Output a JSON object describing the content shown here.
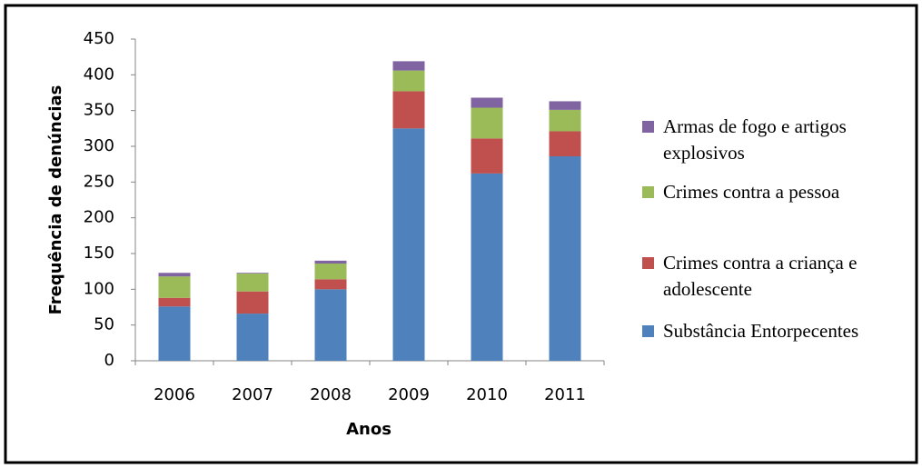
{
  "chart_data": {
    "type": "stacked_bar",
    "x_label": "Anos",
    "y_label": "Frequência de denúncias",
    "categories": [
      "2006",
      "2007",
      "2008",
      "2009",
      "2010",
      "2011"
    ],
    "series": [
      {
        "name": "Substância Entorpecentes",
        "color": "#4f81bd",
        "values": [
          76,
          66,
          100,
          325,
          262,
          286
        ]
      },
      {
        "name": "Crimes contra a criança e adolescente",
        "color": "#c0504d",
        "values": [
          12,
          31,
          14,
          52,
          49,
          35
        ]
      },
      {
        "name": "Crimes contra a pessoa",
        "color": "#9bbb59",
        "values": [
          30,
          25,
          22,
          29,
          43,
          30
        ]
      },
      {
        "name": "Armas de fogo e artigos explosivos",
        "color": "#8064a2",
        "values": [
          5,
          1,
          4,
          13,
          14,
          12
        ]
      }
    ],
    "ylim": [
      0,
      450
    ],
    "yticks": [
      0,
      50,
      100,
      150,
      200,
      250,
      300,
      350,
      400,
      450
    ],
    "legend": "right"
  }
}
